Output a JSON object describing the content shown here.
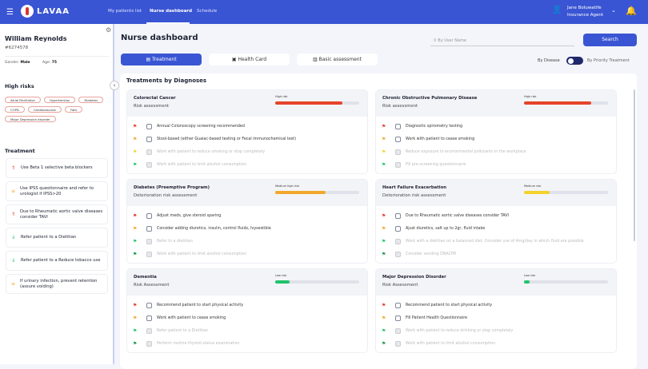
{
  "header": {
    "brand": "LAVAA",
    "nav": [
      "My patients list",
      "Nurse dashboard",
      "Schedule"
    ],
    "active_nav": 1,
    "user_name": "Jane Boluwatife",
    "user_role": "Insurance Agent"
  },
  "patient": {
    "name": "William Reynolds",
    "id": "#6274578",
    "gender_label": "Gender:",
    "gender": "Male",
    "age_label": "Age:",
    "age": "75"
  },
  "high_risks": {
    "title": "High risks",
    "items": [
      "Atrial Fibrillation",
      "Hypertension",
      "Diabetes",
      "COPD",
      "Cardiovascular",
      "Falls",
      "Major Depression disorder"
    ]
  },
  "treatment": {
    "title": "Treatment",
    "items": [
      {
        "text": "Use Beta 1 selective beta blockers",
        "priority": "high"
      },
      {
        "text": "Use IPSS questionnaire and refer to urologist if IPSS>20",
        "priority": "medium"
      },
      {
        "text": "Due to Rheumatic aortic valve diseases consider TAVI",
        "priority": "high"
      },
      {
        "text": "Refer patient to a Dietitian",
        "priority": "low"
      },
      {
        "text": "Refer patient to a Reduce tobacco use",
        "priority": "low"
      },
      {
        "text": "If urinary infection, prevent retention (assure voiding)",
        "priority": "medium"
      }
    ]
  },
  "main": {
    "title": "Nurse dashboard",
    "search_placeholder": "By User Name",
    "search_button": "Search",
    "tabs": [
      "Treatment",
      "Health Card",
      "Basic assessment"
    ],
    "active_tab": 0,
    "toggle_left": "By Disease",
    "toggle_right": "By Priority Treatment",
    "section_title": "Treatments by Diagnoses"
  },
  "colors": {
    "primary": "#3a55d3",
    "flags": {
      "red": "#e53b2c",
      "orange": "#f2a82c",
      "yellow": "#f5d22b",
      "green": "#22c36b",
      "darkgreen": "#13944a"
    }
  },
  "diagnoses": [
    {
      "name": "Colorectal Cancer",
      "subtitle": "Risk assessment",
      "risk_label": "High risk",
      "risk_pct": 80,
      "risk_color": "#e5432c",
      "items": [
        {
          "flag": "red",
          "text": "Annual Colonoscopy screening recommended",
          "done": false
        },
        {
          "flag": "orange",
          "text": "Stool-based (either Guaiac-based testing or Fecal immunochemical test)",
          "done": false
        },
        {
          "flag": "yellow",
          "text": "Work with patient to reduce smoking or stop completely",
          "done": true
        },
        {
          "flag": "green",
          "text": "Work with patient to limit alcohol consumption",
          "done": true
        }
      ]
    },
    {
      "name": "Chronic Obstructive Pulmonary Disease",
      "subtitle": "Risk assessment",
      "risk_label": "High risk",
      "risk_pct": 80,
      "risk_color": "#e5432c",
      "items": [
        {
          "flag": "red",
          "text": "Diagnostic spirometry testing",
          "done": false
        },
        {
          "flag": "orange",
          "text": "Work with patient to cease smoking",
          "done": false
        },
        {
          "flag": "yellow",
          "text": "Reduce exposure to environmental pollutants in the workplace",
          "done": true
        },
        {
          "flag": "green",
          "text": "Fill pre-screening questionnaire",
          "done": true
        }
      ]
    },
    {
      "name": "Diabetes (Preemptive Program)",
      "subtitle": "Deterioration risk assessment",
      "risk_label": "Medium high risk",
      "risk_pct": 60,
      "risk_color": "#f2a82c",
      "items": [
        {
          "flag": "red",
          "text": "Adjust meds, give steroid sparing",
          "done": false
        },
        {
          "flag": "orange",
          "text": "Consider adding diuretics, insulin, control fluids, Ivysestible",
          "done": false
        },
        {
          "flag": "green",
          "text": "Refer to a dietitian",
          "done": true
        },
        {
          "flag": "darkgreen",
          "text": "Work with patient to limit alcohol consumption",
          "done": true
        }
      ]
    },
    {
      "name": "Heart Failure Exacerbation",
      "subtitle": "Deterioration risk assessment",
      "risk_label": "Medium risk",
      "risk_pct": 30,
      "risk_color": "#f5d22b",
      "items": [
        {
          "flag": "red",
          "text": "Due to Rheumatic aortic valve diseases consider TAVI",
          "done": false
        },
        {
          "flag": "orange",
          "text": "Ajust diuretics, salt up to 2gr, fluid intake",
          "done": false
        },
        {
          "flag": "green",
          "text": "Work with a dietitian on a balanced diet. Consider use of 4mg/day in which fluid are possible",
          "done": true
        },
        {
          "flag": "darkgreen",
          "text": "Consider sending DNACPR",
          "done": true
        }
      ]
    },
    {
      "name": "Dementia",
      "subtitle": "Risk Assessment",
      "risk_label": "Low risk",
      "risk_pct": 17,
      "risk_color": "#22c36b",
      "items": [
        {
          "flag": "red",
          "text": "Recommend patient to start physical activity",
          "done": false
        },
        {
          "flag": "orange",
          "text": "Work with patient to cease smoking",
          "done": false
        },
        {
          "flag": "green",
          "text": "Refer patient to a Dietitian",
          "done": true
        },
        {
          "flag": "darkgreen",
          "text": "Perform routine thyroid status examination",
          "done": true
        }
      ]
    },
    {
      "name": "Major Depression Disorder",
      "subtitle": "Risk Assessment",
      "risk_label": "Low risk",
      "risk_pct": 7,
      "risk_color": "#22c36b",
      "items": [
        {
          "flag": "red",
          "text": "Recommend patient to start physical activity",
          "done": false
        },
        {
          "flag": "orange",
          "text": "Fill Patient Health Questionnaire",
          "done": false
        },
        {
          "flag": "green",
          "text": "Work with patient to reduce drinking or stop completely",
          "done": true
        },
        {
          "flag": "darkgreen",
          "text": "Work with patient to limit alcohol consumption",
          "done": true
        }
      ]
    }
  ]
}
